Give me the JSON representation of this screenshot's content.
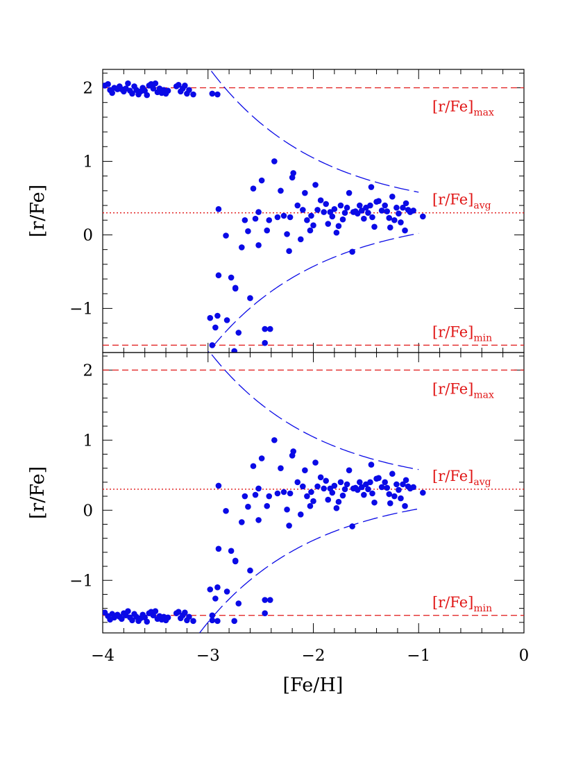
{
  "figure": {
    "xlabel": "[Fe/H]",
    "colors": {
      "points": "#0a0ae6",
      "curves": "#0a0ae6",
      "reference": "#e01515",
      "axes": "#000000"
    }
  },
  "chart_data": [
    {
      "type": "scatter",
      "panel": "top",
      "xlabel": "",
      "ylabel": "[r/Fe]",
      "xlim": [
        -4,
        0
      ],
      "ylim": [
        -1.6,
        2.25
      ],
      "xticks": [
        "−4",
        "−3",
        "−2",
        "−1",
        "0"
      ],
      "yticks": [
        "−1",
        "0",
        "1",
        "2"
      ],
      "tick_labels_shown_x": false,
      "reference_lines": [
        {
          "y": 2.0,
          "style": "dashed",
          "label_main": "[r/Fe]",
          "label_sub": "max"
        },
        {
          "y": 0.3,
          "style": "dotted",
          "label_main": "[r/Fe]",
          "label_sub": "avg"
        },
        {
          "y": -1.5,
          "style": "dashed",
          "label_main": "[r/Fe]",
          "label_sub": "min"
        }
      ],
      "envelope_curves": {
        "style": "long-dashed",
        "upper_asymptote": 2.0,
        "lower_asymptote": -1.5,
        "end_values_at_x_minus_1": [
          0.58,
          0.02
        ],
        "x_range": [
          -3.08,
          -1.0
        ]
      },
      "points": [
        [
          -3.98,
          2.03
        ],
        [
          -3.95,
          2.05
        ],
        [
          -3.93,
          1.97
        ],
        [
          -3.91,
          1.93
        ],
        [
          -3.89,
          2.0
        ],
        [
          -3.86,
          1.98
        ],
        [
          -3.84,
          2.02
        ],
        [
          -3.82,
          1.98
        ],
        [
          -3.8,
          1.95
        ],
        [
          -3.78,
          1.99
        ],
        [
          -3.76,
          2.06
        ],
        [
          -3.74,
          1.96
        ],
        [
          -3.72,
          1.92
        ],
        [
          -3.7,
          2.02
        ],
        [
          -3.68,
          1.97
        ],
        [
          -3.66,
          1.91
        ],
        [
          -3.64,
          1.95
        ],
        [
          -3.62,
          2.0
        ],
        [
          -3.6,
          1.96
        ],
        [
          -3.58,
          1.9
        ],
        [
          -3.56,
          2.03
        ],
        [
          -3.54,
          2.05
        ],
        [
          -3.52,
          1.99
        ],
        [
          -3.5,
          2.06
        ],
        [
          -3.48,
          1.94
        ],
        [
          -3.46,
          1.99
        ],
        [
          -3.44,
          1.93
        ],
        [
          -3.42,
          1.97
        ],
        [
          -3.4,
          1.92
        ],
        [
          -3.38,
          1.96
        ],
        [
          -3.3,
          2.02
        ],
        [
          -3.28,
          2.04
        ],
        [
          -3.26,
          1.95
        ],
        [
          -3.24,
          1.99
        ],
        [
          -3.22,
          2.03
        ],
        [
          -3.2,
          1.92
        ],
        [
          -3.18,
          1.97
        ],
        [
          -3.14,
          1.91
        ],
        [
          -2.96,
          1.92
        ],
        [
          -2.91,
          1.91
        ],
        [
          -2.9,
          0.35
        ],
        [
          -2.83,
          -0.01
        ],
        [
          -2.74,
          -0.72
        ],
        [
          -2.71,
          -1.33
        ],
        [
          -2.68,
          -0.17
        ],
        [
          -2.65,
          0.2
        ],
        [
          -2.62,
          0.05
        ],
        [
          -2.6,
          -0.86
        ],
        [
          -2.57,
          0.63
        ],
        [
          -2.55,
          0.22
        ],
        [
          -2.52,
          -0.14
        ],
        [
          -2.52,
          0.31
        ],
        [
          -2.49,
          0.74
        ],
        [
          -2.46,
          -1.28
        ],
        [
          -2.46,
          -1.47
        ],
        [
          -2.44,
          0.06
        ],
        [
          -2.42,
          0.2
        ],
        [
          -2.37,
          1.0
        ],
        [
          -2.34,
          0.24
        ],
        [
          -2.31,
          0.6
        ],
        [
          -2.28,
          0.26
        ],
        [
          -2.25,
          0.01
        ],
        [
          -2.23,
          -0.22
        ],
        [
          -2.22,
          0.24
        ],
        [
          -2.2,
          0.78
        ],
        [
          -2.19,
          0.84
        ],
        [
          -2.15,
          0.4
        ],
        [
          -2.12,
          -0.06
        ],
        [
          -2.1,
          0.34
        ],
        [
          -2.08,
          0.57
        ],
        [
          -2.06,
          0.2
        ],
        [
          -2.03,
          0.06
        ],
        [
          -2.02,
          0.26
        ],
        [
          -2.0,
          0.13
        ],
        [
          -1.98,
          0.68
        ],
        [
          -1.96,
          0.34
        ],
        [
          -1.93,
          0.47
        ],
        [
          -1.9,
          0.31
        ],
        [
          -1.88,
          0.42
        ],
        [
          -1.86,
          0.15
        ],
        [
          -1.84,
          0.31
        ],
        [
          -1.82,
          0.25
        ],
        [
          -1.8,
          0.35
        ],
        [
          -1.78,
          0.03
        ],
        [
          -1.76,
          0.12
        ],
        [
          -1.74,
          0.4
        ],
        [
          -1.72,
          0.21
        ],
        [
          -1.7,
          0.3
        ],
        [
          -1.68,
          0.37
        ],
        [
          -1.66,
          0.57
        ],
        [
          -1.63,
          -0.23
        ],
        [
          -1.62,
          0.31
        ],
        [
          -1.6,
          0.32
        ],
        [
          -1.58,
          0.29
        ],
        [
          -1.56,
          0.4
        ],
        [
          -1.54,
          0.33
        ],
        [
          -1.52,
          0.22
        ],
        [
          -1.5,
          0.37
        ],
        [
          -1.48,
          0.3
        ],
        [
          -1.46,
          0.4
        ],
        [
          -1.45,
          0.65
        ],
        [
          -1.44,
          0.24
        ],
        [
          -1.42,
          0.11
        ],
        [
          -1.4,
          0.45
        ],
        [
          -1.38,
          0.46
        ],
        [
          -1.35,
          0.33
        ],
        [
          -1.32,
          0.4
        ],
        [
          -1.3,
          0.32
        ],
        [
          -1.28,
          0.23
        ],
        [
          -1.27,
          0.1
        ],
        [
          -1.25,
          0.52
        ],
        [
          -1.23,
          0.2
        ],
        [
          -1.21,
          0.37
        ],
        [
          -1.19,
          0.29
        ],
        [
          -1.17,
          0.17
        ],
        [
          -1.15,
          0.37
        ],
        [
          -1.13,
          0.06
        ],
        [
          -1.12,
          0.43
        ],
        [
          -1.1,
          0.34
        ],
        [
          -1.08,
          0.31
        ],
        [
          -1.05,
          0.33
        ],
        [
          -0.96,
          0.25
        ],
        [
          -2.98,
          -1.13
        ],
        [
          -2.96,
          -1.5
        ],
        [
          -2.93,
          -1.26
        ],
        [
          -2.91,
          -1.1
        ],
        [
          -2.9,
          -0.55
        ],
        [
          -2.82,
          -1.16
        ],
        [
          -2.78,
          -0.58
        ],
        [
          -2.75,
          -1.58
        ],
        [
          -2.74,
          -0.73
        ],
        [
          -2.41,
          -1.28
        ]
      ]
    },
    {
      "type": "scatter",
      "panel": "bottom",
      "xlabel": "[Fe/H]",
      "ylabel": "[r/Fe]",
      "xlim": [
        -4,
        0
      ],
      "ylim": [
        -1.75,
        2.25
      ],
      "xticks": [
        "−4",
        "−3",
        "−2",
        "−1",
        "0"
      ],
      "yticks": [
        "−1",
        "0",
        "1",
        "2"
      ],
      "tick_labels_shown_x": true,
      "reference_lines": [
        {
          "y": 2.0,
          "style": "dashed",
          "label_main": "[r/Fe]",
          "label_sub": "max"
        },
        {
          "y": 0.3,
          "style": "dotted",
          "label_main": "[r/Fe]",
          "label_sub": "avg"
        },
        {
          "y": -1.5,
          "style": "dashed",
          "label_main": "[r/Fe]",
          "label_sub": "min"
        }
      ],
      "envelope_curves": {
        "style": "long-dashed",
        "upper_asymptote": 2.0,
        "lower_asymptote": -1.5,
        "end_values_at_x_minus_1": [
          0.58,
          0.02
        ],
        "x_range": [
          -3.08,
          -1.0
        ]
      },
      "points": [
        [
          -3.98,
          -1.46
        ],
        [
          -3.95,
          -1.51
        ],
        [
          -3.93,
          -1.56
        ],
        [
          -3.91,
          -1.48
        ],
        [
          -3.89,
          -1.53
        ],
        [
          -3.86,
          -1.49
        ],
        [
          -3.84,
          -1.52
        ],
        [
          -3.82,
          -1.55
        ],
        [
          -3.8,
          -1.47
        ],
        [
          -3.78,
          -1.5
        ],
        [
          -3.76,
          -1.44
        ],
        [
          -3.74,
          -1.53
        ],
        [
          -3.72,
          -1.57
        ],
        [
          -3.7,
          -1.48
        ],
        [
          -3.68,
          -1.52
        ],
        [
          -3.66,
          -1.58
        ],
        [
          -3.64,
          -1.54
        ],
        [
          -3.62,
          -1.49
        ],
        [
          -3.6,
          -1.53
        ],
        [
          -3.58,
          -1.59
        ],
        [
          -3.56,
          -1.47
        ],
        [
          -3.54,
          -1.45
        ],
        [
          -3.52,
          -1.5
        ],
        [
          -3.5,
          -1.44
        ],
        [
          -3.48,
          -1.55
        ],
        [
          -3.46,
          -1.51
        ],
        [
          -3.44,
          -1.56
        ],
        [
          -3.42,
          -1.52
        ],
        [
          -3.4,
          -1.57
        ],
        [
          -3.38,
          -1.53
        ],
        [
          -3.3,
          -1.47
        ],
        [
          -3.28,
          -1.45
        ],
        [
          -3.26,
          -1.54
        ],
        [
          -3.24,
          -1.5
        ],
        [
          -3.22,
          -1.46
        ],
        [
          -3.2,
          -1.57
        ],
        [
          -3.18,
          -1.52
        ],
        [
          -3.14,
          -1.58
        ],
        [
          -2.96,
          -1.57
        ],
        [
          -2.91,
          -1.58
        ],
        [
          -2.9,
          0.35
        ],
        [
          -2.83,
          -0.01
        ],
        [
          -2.74,
          -0.72
        ],
        [
          -2.71,
          -1.33
        ],
        [
          -2.68,
          -0.17
        ],
        [
          -2.65,
          0.2
        ],
        [
          -2.62,
          0.05
        ],
        [
          -2.6,
          -0.86
        ],
        [
          -2.57,
          0.63
        ],
        [
          -2.55,
          0.22
        ],
        [
          -2.52,
          -0.14
        ],
        [
          -2.52,
          0.31
        ],
        [
          -2.49,
          0.74
        ],
        [
          -2.46,
          -1.28
        ],
        [
          -2.46,
          -1.47
        ],
        [
          -2.44,
          0.06
        ],
        [
          -2.42,
          0.2
        ],
        [
          -2.37,
          1.0
        ],
        [
          -2.34,
          0.24
        ],
        [
          -2.31,
          0.6
        ],
        [
          -2.28,
          0.26
        ],
        [
          -2.25,
          0.01
        ],
        [
          -2.23,
          -0.22
        ],
        [
          -2.22,
          0.24
        ],
        [
          -2.2,
          0.78
        ],
        [
          -2.19,
          0.84
        ],
        [
          -2.15,
          0.4
        ],
        [
          -2.12,
          -0.06
        ],
        [
          -2.1,
          0.34
        ],
        [
          -2.08,
          0.57
        ],
        [
          -2.06,
          0.2
        ],
        [
          -2.03,
          0.06
        ],
        [
          -2.02,
          0.26
        ],
        [
          -2.0,
          0.13
        ],
        [
          -1.98,
          0.68
        ],
        [
          -1.96,
          0.34
        ],
        [
          -1.93,
          0.47
        ],
        [
          -1.9,
          0.31
        ],
        [
          -1.88,
          0.42
        ],
        [
          -1.86,
          0.15
        ],
        [
          -1.84,
          0.31
        ],
        [
          -1.82,
          0.25
        ],
        [
          -1.8,
          0.35
        ],
        [
          -1.78,
          0.03
        ],
        [
          -1.76,
          0.12
        ],
        [
          -1.74,
          0.4
        ],
        [
          -1.72,
          0.21
        ],
        [
          -1.7,
          0.3
        ],
        [
          -1.68,
          0.37
        ],
        [
          -1.66,
          0.57
        ],
        [
          -1.63,
          -0.23
        ],
        [
          -1.62,
          0.31
        ],
        [
          -1.6,
          0.32
        ],
        [
          -1.58,
          0.29
        ],
        [
          -1.56,
          0.4
        ],
        [
          -1.54,
          0.33
        ],
        [
          -1.52,
          0.22
        ],
        [
          -1.5,
          0.37
        ],
        [
          -1.48,
          0.3
        ],
        [
          -1.46,
          0.4
        ],
        [
          -1.45,
          0.65
        ],
        [
          -1.44,
          0.24
        ],
        [
          -1.42,
          0.11
        ],
        [
          -1.4,
          0.45
        ],
        [
          -1.38,
          0.46
        ],
        [
          -1.35,
          0.33
        ],
        [
          -1.32,
          0.4
        ],
        [
          -1.3,
          0.32
        ],
        [
          -1.28,
          0.23
        ],
        [
          -1.27,
          0.1
        ],
        [
          -1.25,
          0.52
        ],
        [
          -1.23,
          0.2
        ],
        [
          -1.21,
          0.37
        ],
        [
          -1.19,
          0.29
        ],
        [
          -1.17,
          0.17
        ],
        [
          -1.15,
          0.37
        ],
        [
          -1.13,
          0.06
        ],
        [
          -1.12,
          0.43
        ],
        [
          -1.1,
          0.34
        ],
        [
          -1.08,
          0.31
        ],
        [
          -1.05,
          0.33
        ],
        [
          -0.96,
          0.25
        ],
        [
          -2.98,
          -1.13
        ],
        [
          -2.96,
          -1.5
        ],
        [
          -2.93,
          -1.26
        ],
        [
          -2.91,
          -1.1
        ],
        [
          -2.9,
          -0.55
        ],
        [
          -2.82,
          -1.16
        ],
        [
          -2.78,
          -0.58
        ],
        [
          -2.75,
          -1.58
        ],
        [
          -2.74,
          -0.73
        ],
        [
          -2.41,
          -1.28
        ]
      ]
    }
  ]
}
